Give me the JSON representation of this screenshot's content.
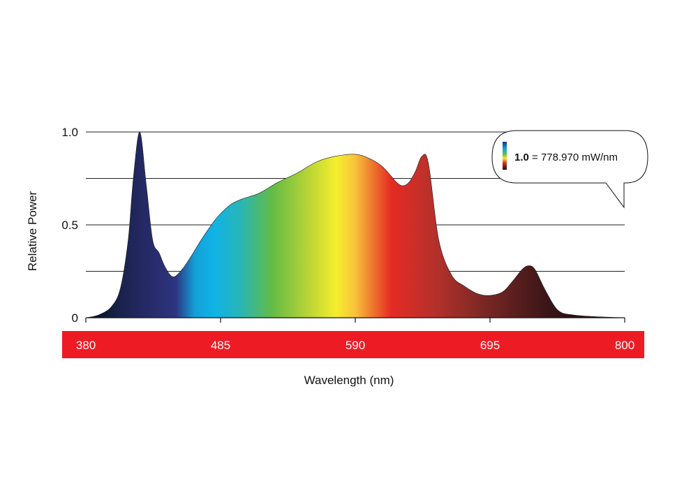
{
  "chart_data": {
    "type": "area",
    "xlabel": "Wavelength (nm)",
    "ylabel": "Relative Power",
    "xlim": [
      380,
      800
    ],
    "ylim": [
      0,
      1.0
    ],
    "x_ticks": [
      {
        "value": 380,
        "label": "380"
      },
      {
        "value": 485,
        "label": "485"
      },
      {
        "value": 590,
        "label": "590"
      },
      {
        "value": 695,
        "label": "695"
      },
      {
        "value": 800,
        "label": "800"
      }
    ],
    "y_ticks": [
      {
        "value": 0,
        "label": "0"
      },
      {
        "value": 0.5,
        "label": "0.5"
      },
      {
        "value": 1.0,
        "label": "1.0"
      }
    ],
    "y_gridlines": [
      0.25,
      0.5,
      0.75,
      1.0
    ],
    "grid": true,
    "series": [
      {
        "x": [
          380,
          390,
          400,
          407,
          413,
          417,
          422,
          427,
          432,
          437,
          442,
          448,
          455,
          462,
          470,
          480,
          485,
          493,
          502,
          515,
          530,
          545,
          560,
          575,
          590,
          600,
          610,
          617,
          622,
          627,
          632,
          637,
          642,
          647,
          655,
          665,
          675,
          685,
          695,
          705,
          713,
          720,
          725,
          730,
          738,
          748,
          760,
          780,
          800
        ],
        "y": [
          0.0,
          0.015,
          0.06,
          0.16,
          0.42,
          0.75,
          1.0,
          0.72,
          0.42,
          0.35,
          0.27,
          0.22,
          0.26,
          0.33,
          0.42,
          0.52,
          0.56,
          0.61,
          0.64,
          0.67,
          0.73,
          0.78,
          0.84,
          0.87,
          0.88,
          0.86,
          0.82,
          0.77,
          0.73,
          0.71,
          0.73,
          0.79,
          0.87,
          0.83,
          0.42,
          0.23,
          0.17,
          0.13,
          0.12,
          0.14,
          0.2,
          0.26,
          0.28,
          0.26,
          0.15,
          0.04,
          0.015,
          0.005,
          0.0
        ]
      }
    ],
    "gradient_colors": [
      {
        "nm": 380,
        "color": "#080a14"
      },
      {
        "nm": 405,
        "color": "#18224a"
      },
      {
        "nm": 420,
        "color": "#22275e"
      },
      {
        "nm": 450,
        "color": "#2e3480"
      },
      {
        "nm": 465,
        "color": "#12a0d8"
      },
      {
        "nm": 480,
        "color": "#10b4e6"
      },
      {
        "nm": 500,
        "color": "#27b5b8"
      },
      {
        "nm": 525,
        "color": "#63bb46"
      },
      {
        "nm": 555,
        "color": "#bdd634"
      },
      {
        "nm": 575,
        "color": "#f5ee2e"
      },
      {
        "nm": 590,
        "color": "#f8c23a"
      },
      {
        "nm": 600,
        "color": "#f08a30"
      },
      {
        "nm": 618,
        "color": "#e52b24"
      },
      {
        "nm": 650,
        "color": "#b8312b"
      },
      {
        "nm": 690,
        "color": "#7a2824"
      },
      {
        "nm": 740,
        "color": "#3a1518"
      },
      {
        "nm": 800,
        "color": "#120608"
      }
    ],
    "axis_band_color": "#ed1c24",
    "callout": {
      "value_bold": "1.0",
      "value_rest": " = 778.970 mW/nm"
    }
  }
}
